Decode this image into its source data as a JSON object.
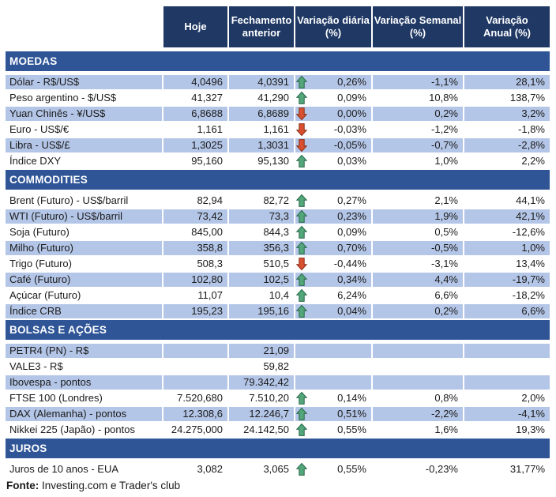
{
  "colors": {
    "header_bg": "#1F3864",
    "section_bg": "#2F5597",
    "stripe_bg": "#B4C6E7",
    "up_arrow_fill": "#53A679",
    "up_arrow_stroke": "#27674A",
    "down_arrow_fill": "#D8502F",
    "down_arrow_stroke": "#8B2E16",
    "text": "#1a1a1a"
  },
  "header": {
    "columns": [
      "Hoje",
      "Fechamento\nanterior",
      "Variação diária\n(%)",
      "Variação Semanal\n(%)",
      "Variação\nAnual (%)"
    ]
  },
  "sections": [
    {
      "title": "MOEDAS",
      "start_striped": true,
      "rows": [
        {
          "label": "Dólar - R$/US$",
          "hoje": "4,0496",
          "fechamento": "4,0391",
          "arrow": "up",
          "var_diaria": "0,26%",
          "var_semanal": "-1,1%",
          "var_anual": "28,1%"
        },
        {
          "label": "Peso argentino - $/US$",
          "hoje": "41,327",
          "fechamento": "41,290",
          "arrow": "up",
          "var_diaria": "0,09%",
          "var_semanal": "10,8%",
          "var_anual": "138,7%"
        },
        {
          "label": "Yuan Chinês - ¥/US$",
          "hoje": "6,8688",
          "fechamento": "6,8689",
          "arrow": "down",
          "var_diaria": "0,00%",
          "var_semanal": "0,2%",
          "var_anual": "3,2%"
        },
        {
          "label": "Euro - US$/€",
          "hoje": "1,161",
          "fechamento": "1,161",
          "arrow": "down",
          "var_diaria": "-0,03%",
          "var_semanal": "-1,2%",
          "var_anual": "-1,8%"
        },
        {
          "label": "Libra - US$/£",
          "hoje": "1,3025",
          "fechamento": "1,3031",
          "arrow": "down",
          "var_diaria": "-0,05%",
          "var_semanal": "-0,7%",
          "var_anual": "-2,8%"
        },
        {
          "label": "Índice DXY",
          "hoje": "95,160",
          "fechamento": "95,130",
          "arrow": "up",
          "var_diaria": "0,03%",
          "var_semanal": "1,0%",
          "var_anual": "2,2%"
        }
      ]
    },
    {
      "title": "COMMODITIES",
      "start_striped": false,
      "rows": [
        {
          "label": "Brent (Futuro) - US$/barril",
          "hoje": "82,94",
          "fechamento": "82,72",
          "arrow": "up",
          "var_diaria": "0,27%",
          "var_semanal": "2,1%",
          "var_anual": "44,1%"
        },
        {
          "label": "WTI (Futuro) - US$/barril",
          "hoje": "73,42",
          "fechamento": "73,3",
          "arrow": "up",
          "var_diaria": "0,23%",
          "var_semanal": "1,9%",
          "var_anual": "42,1%"
        },
        {
          "label": "Soja (Futuro)",
          "hoje": "845,00",
          "fechamento": "844,3",
          "arrow": "up",
          "var_diaria": "0,09%",
          "var_semanal": "0,5%",
          "var_anual": "-12,6%"
        },
        {
          "label": "Milho (Futuro)",
          "hoje": "358,8",
          "fechamento": "356,3",
          "arrow": "up",
          "var_diaria": "0,70%",
          "var_semanal": "-0,5%",
          "var_anual": "1,0%"
        },
        {
          "label": "Trigo (Futuro)",
          "hoje": "508,3",
          "fechamento": "510,5",
          "arrow": "down",
          "var_diaria": "-0,44%",
          "var_semanal": "-3,1%",
          "var_anual": "13,4%"
        },
        {
          "label": "Café (Futuro)",
          "hoje": "102,80",
          "fechamento": "102,5",
          "arrow": "up",
          "var_diaria": "0,34%",
          "var_semanal": "4,4%",
          "var_anual": "-19,7%"
        },
        {
          "label": "Açúcar (Futuro)",
          "hoje": "11,07",
          "fechamento": "10,4",
          "arrow": "up",
          "var_diaria": "6,24%",
          "var_semanal": "6,6%",
          "var_anual": "-18,2%"
        },
        {
          "label": "Índice CRB",
          "hoje": "195,23",
          "fechamento": "195,16",
          "arrow": "up",
          "var_diaria": "0,04%",
          "var_semanal": "0,2%",
          "var_anual": "6,6%"
        }
      ]
    },
    {
      "title": "BOLSAS E AÇÕES",
      "start_striped": true,
      "rows": [
        {
          "label": "PETR4 (PN) - R$",
          "hoje": "",
          "fechamento": "21,09",
          "arrow": null,
          "var_diaria": "",
          "var_semanal": "",
          "var_anual": ""
        },
        {
          "label": "VALE3 - R$",
          "hoje": "",
          "fechamento": "59,82",
          "arrow": null,
          "var_diaria": "",
          "var_semanal": "",
          "var_anual": ""
        },
        {
          "label": "Ibovespa - pontos",
          "hoje": "",
          "fechamento": "79.342,42",
          "arrow": null,
          "var_diaria": "",
          "var_semanal": "",
          "var_anual": ""
        },
        {
          "label": "FTSE 100 (Londres)",
          "hoje": "7.520,680",
          "fechamento": "7.510,20",
          "arrow": "up",
          "var_diaria": "0,14%",
          "var_semanal": "0,8%",
          "var_anual": "2,0%"
        },
        {
          "label": "DAX (Alemanha) - pontos",
          "hoje": "12.308,6",
          "fechamento": "12.246,7",
          "arrow": "up",
          "var_diaria": "0,51%",
          "var_semanal": "-2,2%",
          "var_anual": "-4,1%"
        },
        {
          "label": "Nikkei 225 (Japão) - pontos",
          "hoje": "24.275,000",
          "fechamento": "24.142,50",
          "arrow": "up",
          "var_diaria": "0,55%",
          "var_semanal": "1,6%",
          "var_anual": "19,3%"
        }
      ]
    },
    {
      "title": "JUROS",
      "start_striped": false,
      "rows": [
        {
          "label": "Juros de 10 anos - EUA",
          "hoje": "3,082",
          "fechamento": "3,065",
          "arrow": "up",
          "var_diaria": "0,55%",
          "var_semanal": "-0,23%",
          "var_anual": "31,77%"
        }
      ]
    }
  ],
  "footer": {
    "source_label": "Fonte:",
    "source_text": " Investing.com e Trader's club"
  }
}
